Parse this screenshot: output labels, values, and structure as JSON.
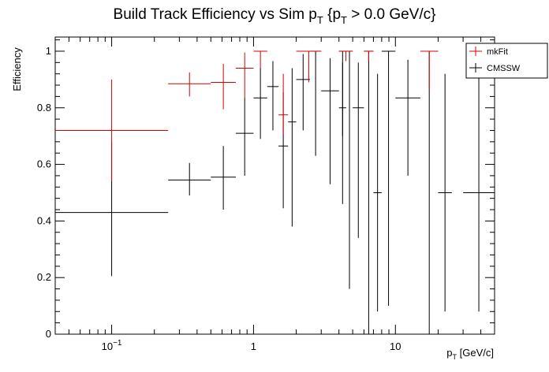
{
  "chart_data": {
    "type": "scatter",
    "title": "Build Track Efficiency vs Sim p_T {p_T > 0.0 GeV/c}",
    "title_parts": {
      "a": "Build Track Efficiency vs Sim p",
      "sub1": "T",
      "b": " {p",
      "sub2": "T",
      "c": " > 0.0 GeV/c}"
    },
    "xlabel": "p_T [GeV/c]",
    "xlabel_parts": {
      "main": "p",
      "sub": "T",
      "unit": " [GeV/c]"
    },
    "ylabel": "Efficiency",
    "x_scale": "log",
    "xlim": [
      0.04,
      50
    ],
    "ylim": [
      0,
      1.05
    ],
    "x_ticks": [
      {
        "value": 0.1,
        "base": "10",
        "exp": "−1"
      },
      {
        "value": 1,
        "label": "1"
      },
      {
        "value": 10,
        "label": "10"
      }
    ],
    "y_ticks": [
      {
        "value": 0,
        "label": "0"
      },
      {
        "value": 0.2,
        "label": "0.2"
      },
      {
        "value": 0.4,
        "label": "0.4"
      },
      {
        "value": 0.6,
        "label": "0.6"
      },
      {
        "value": 0.8,
        "label": "0.8"
      },
      {
        "value": 1,
        "label": "1"
      }
    ],
    "grid": false,
    "legend_position": "top-right",
    "series": [
      {
        "name": "mkFit",
        "color": "#d40000",
        "points": [
          {
            "xlo": 0.04,
            "xhi": 0.25,
            "y": 0.72,
            "ylo": 0.54,
            "yhi": 0.9
          },
          {
            "xlo": 0.25,
            "xhi": 0.5,
            "y": 0.885,
            "ylo": 0.84,
            "yhi": 0.925
          },
          {
            "xlo": 0.5,
            "xhi": 0.75,
            "y": 0.89,
            "ylo": 0.795,
            "yhi": 0.955
          },
          {
            "xlo": 0.75,
            "xhi": 1.0,
            "y": 0.94,
            "ylo": 0.835,
            "yhi": 0.995
          },
          {
            "xlo": 1.0,
            "xhi": 1.25,
            "y": 1.0,
            "ylo": 0.94,
            "yhi": 1.0
          },
          {
            "xlo": 1.5,
            "xhi": 1.75,
            "y": 0.775,
            "ylo": 0.705,
            "yhi": 0.92
          },
          {
            "xlo": 2.0,
            "xhi": 3.0,
            "y": 1.0,
            "ylo": 0.89,
            "yhi": 1.0
          },
          {
            "xlo": 4.0,
            "xhi": 5.0,
            "y": 1.0,
            "ylo": 0.965,
            "yhi": 1.0
          },
          {
            "xlo": 6.0,
            "xhi": 7.0,
            "y": 1.0,
            "ylo": 0.965,
            "yhi": 1.0
          },
          {
            "xlo": 15.0,
            "xhi": 20.0,
            "y": 1.0,
            "ylo": 0.865,
            "yhi": 1.0
          }
        ]
      },
      {
        "name": "CMSSW",
        "color": "#000000",
        "points": [
          {
            "xlo": 0.04,
            "xhi": 0.25,
            "y": 0.43,
            "ylo": 0.205,
            "yhi": 0.68
          },
          {
            "xlo": 0.25,
            "xhi": 0.5,
            "y": 0.545,
            "ylo": 0.49,
            "yhi": 0.605
          },
          {
            "xlo": 0.5,
            "xhi": 0.75,
            "y": 0.555,
            "ylo": 0.44,
            "yhi": 0.665
          },
          {
            "xlo": 0.75,
            "xhi": 1.0,
            "y": 0.71,
            "ylo": 0.56,
            "yhi": 0.835
          },
          {
            "xlo": 1.0,
            "xhi": 1.25,
            "y": 0.835,
            "ylo": 0.69,
            "yhi": 0.94
          },
          {
            "xlo": 1.25,
            "xhi": 1.5,
            "y": 0.875,
            "ylo": 0.72,
            "yhi": 0.965
          },
          {
            "xlo": 1.5,
            "xhi": 1.75,
            "y": 0.665,
            "ylo": 0.445,
            "yhi": 0.855
          },
          {
            "xlo": 1.75,
            "xhi": 2.0,
            "y": 0.75,
            "ylo": 0.38,
            "yhi": 0.94
          },
          {
            "xlo": 2.0,
            "xhi": 2.5,
            "y": 0.9,
            "ylo": 0.72,
            "yhi": 0.99
          },
          {
            "xlo": 2.5,
            "xhi": 3.0,
            "y": 1.0,
            "ylo": 0.63,
            "yhi": 1.0
          },
          {
            "xlo": 3.0,
            "xhi": 4.0,
            "y": 0.86,
            "ylo": 0.53,
            "yhi": 0.975
          },
          {
            "xlo": 4.0,
            "xhi": 4.5,
            "y": 1.0,
            "ylo": 0.7,
            "yhi": 1.0
          },
          {
            "xlo": 4.0,
            "xhi": 4.5,
            "y": 0.8,
            "ylo": 0.46,
            "yhi": 0.96
          },
          {
            "xlo": 4.5,
            "xhi": 5.0,
            "y": 1.0,
            "ylo": 0.16,
            "yhi": 1.0
          },
          {
            "xlo": 5.0,
            "xhi": 6.0,
            "y": 0.8,
            "ylo": 0.34,
            "yhi": 0.96
          },
          {
            "xlo": 6.0,
            "xhi": 7.0,
            "y": 1.0,
            "ylo": 0.0,
            "yhi": 1.0
          },
          {
            "xlo": 7.0,
            "xhi": 8.0,
            "y": 0.5,
            "ylo": 0.08,
            "yhi": 0.92
          },
          {
            "xlo": 8.0,
            "xhi": 10.0,
            "y": 1.0,
            "ylo": 0.1,
            "yhi": 1.0
          },
          {
            "xlo": 10.0,
            "xhi": 15.0,
            "y": 0.835,
            "ylo": 0.56,
            "yhi": 0.97
          },
          {
            "xlo": 15.0,
            "xhi": 20.0,
            "y": 1.0,
            "ylo": 0.0,
            "yhi": 1.0
          },
          {
            "xlo": 20.0,
            "xhi": 25.0,
            "y": 0.5,
            "ylo": 0.08,
            "yhi": 0.92
          },
          {
            "xlo": 30.0,
            "xhi": 50.0,
            "y": 0.5,
            "ylo": 0.08,
            "yhi": 0.92
          }
        ]
      }
    ]
  }
}
